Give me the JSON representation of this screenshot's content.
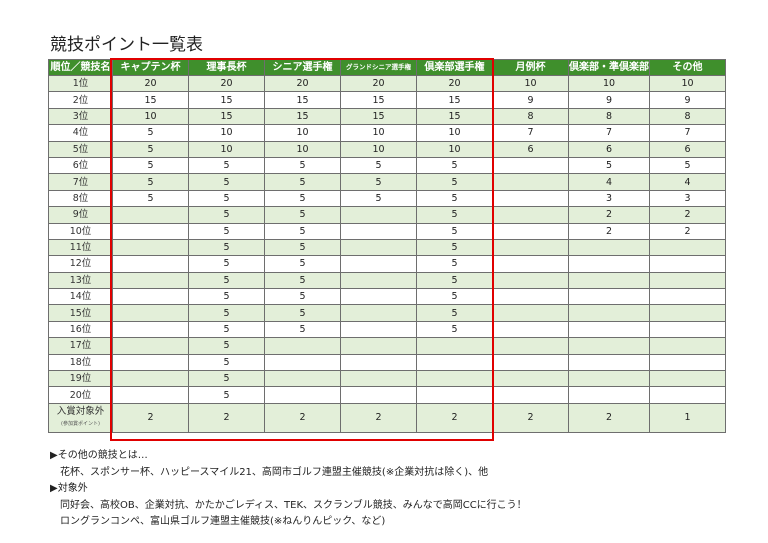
{
  "title": "競技ポイント一覧表",
  "table": {
    "headers": [
      "順位／競技名",
      "キャプテン杯",
      "理事長杯",
      "シニア選手権",
      "グランドシニア選手権",
      "倶楽部選手権",
      "月例杯",
      "倶楽部・準倶楽部",
      "その他"
    ],
    "rows": [
      {
        "rank": "1位",
        "cells": [
          "20",
          "20",
          "20",
          "20",
          "20",
          "10",
          "10",
          "10"
        ]
      },
      {
        "rank": "2位",
        "cells": [
          "15",
          "15",
          "15",
          "15",
          "15",
          "9",
          "9",
          "9"
        ]
      },
      {
        "rank": "3位",
        "cells": [
          "10",
          "15",
          "15",
          "15",
          "15",
          "8",
          "8",
          "8"
        ]
      },
      {
        "rank": "4位",
        "cells": [
          "5",
          "10",
          "10",
          "10",
          "10",
          "7",
          "7",
          "7"
        ]
      },
      {
        "rank": "5位",
        "cells": [
          "5",
          "10",
          "10",
          "10",
          "10",
          "6",
          "6",
          "6"
        ]
      },
      {
        "rank": "6位",
        "cells": [
          "5",
          "5",
          "5",
          "5",
          "5",
          null,
          "5",
          "5"
        ]
      },
      {
        "rank": "7位",
        "cells": [
          "5",
          "5",
          "5",
          "5",
          "5",
          null,
          "4",
          "4"
        ]
      },
      {
        "rank": "8位",
        "cells": [
          "5",
          "5",
          "5",
          "5",
          "5",
          null,
          "3",
          "3"
        ]
      },
      {
        "rank": "9位",
        "cells": [
          null,
          "5",
          "5",
          null,
          "5",
          null,
          "2",
          "2"
        ]
      },
      {
        "rank": "10位",
        "cells": [
          null,
          "5",
          "5",
          null,
          "5",
          null,
          "2",
          "2"
        ]
      },
      {
        "rank": "11位",
        "cells": [
          null,
          "5",
          "5",
          null,
          "5",
          null,
          null,
          null
        ]
      },
      {
        "rank": "12位",
        "cells": [
          null,
          "5",
          "5",
          null,
          "5",
          null,
          null,
          null
        ]
      },
      {
        "rank": "13位",
        "cells": [
          null,
          "5",
          "5",
          null,
          "5",
          null,
          null,
          null
        ]
      },
      {
        "rank": "14位",
        "cells": [
          null,
          "5",
          "5",
          null,
          "5",
          null,
          null,
          null
        ]
      },
      {
        "rank": "15位",
        "cells": [
          null,
          "5",
          "5",
          null,
          "5",
          null,
          null,
          null
        ]
      },
      {
        "rank": "16位",
        "cells": [
          null,
          "5",
          "5",
          null,
          "5",
          null,
          null,
          null
        ]
      },
      {
        "rank": "17位",
        "cells": [
          null,
          "5",
          null,
          null,
          null,
          null,
          null,
          null
        ]
      },
      {
        "rank": "18位",
        "cells": [
          null,
          "5",
          null,
          null,
          null,
          null,
          null,
          null
        ]
      },
      {
        "rank": "19位",
        "cells": [
          null,
          "5",
          null,
          null,
          null,
          null,
          null,
          null
        ]
      },
      {
        "rank": "20位",
        "cells": [
          null,
          "5",
          null,
          null,
          null,
          null,
          null,
          null
        ]
      }
    ],
    "last_row": {
      "label": "入賞対象外",
      "sublabel": "(参加賞ポイント)",
      "cells": [
        "2",
        "2",
        "2",
        "2",
        "2",
        "2",
        "2",
        "1"
      ]
    }
  },
  "notes": {
    "other_heading": "▶その他の競技とは…",
    "other_text": "花杯、スポンサー杯、ハッピースマイル21、高岡市ゴルフ連盟主催競技(※企業対抗は除く)、他",
    "excluded_heading": "▶対象外",
    "excluded_line1": "同好会、高校OB、企業対抗、かたかごレディス、TEK、スクランブル競技、みんなで高岡CCに行こう！",
    "excluded_line2": "ロングランコンペ、富山県ゴルフ連盟主催競技(※ねんりんピック、など)"
  },
  "colors": {
    "header_green": "#3f8f2c",
    "row_light_green": "#e3efd9",
    "frame_red": "#e00000"
  }
}
